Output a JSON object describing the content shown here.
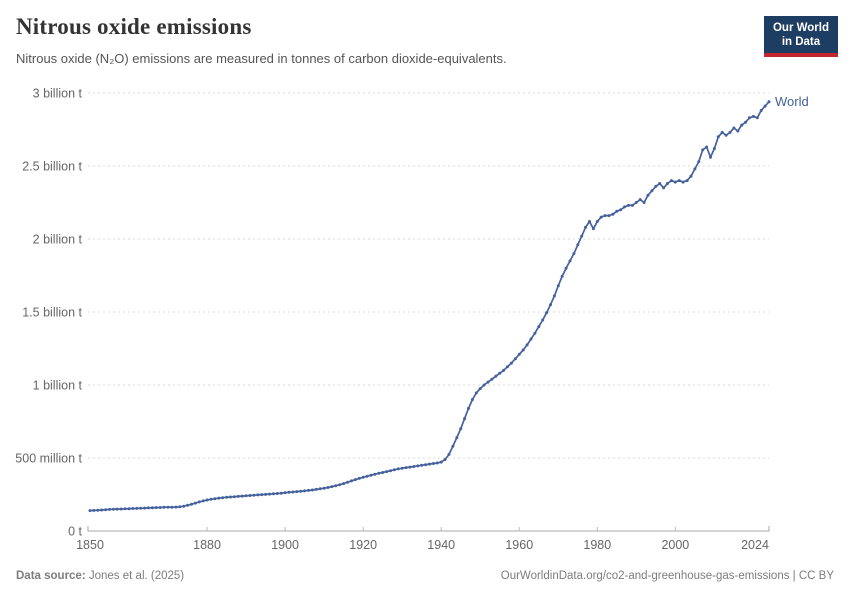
{
  "header": {
    "title": "Nitrous oxide emissions",
    "subtitle": "Nitrous oxide (N₂O) emissions are measured in tonnes of carbon dioxide-equivalents.",
    "logo": {
      "line1": "Our World",
      "line2": "in Data",
      "bg_color": "#1d3d63",
      "stripe_color": "#c2262e"
    }
  },
  "footer": {
    "source_label": "Data source:",
    "source_value": "Jones et al. (2025)",
    "credit": "OurWorldinData.org/co2-and-greenhouse-gas-emissions | CC BY"
  },
  "colors": {
    "line": "#45619c",
    "axis_text": "#666666",
    "grid": "#d9d9d9",
    "axis": "#a9a9a9",
    "title": "#333333",
    "subtitle": "#555555",
    "footer": "#7d7d7d"
  },
  "chart_data": {
    "type": "line",
    "title": "Nitrous oxide emissions",
    "xlabel": "",
    "ylabel": "",
    "unit": "tonnes of carbon dioxide-equivalents",
    "xlim": [
      1850,
      2024
    ],
    "ylim": [
      0,
      3
    ],
    "grid": "horizontal-dashed",
    "legend_position": "end-of-line",
    "x_ticks": [
      1850,
      1880,
      1900,
      1920,
      1940,
      1960,
      1980,
      2000,
      2024
    ],
    "y_ticks": [
      {
        "value": 0,
        "label": "0 t"
      },
      {
        "value": 0.5,
        "label": "500 million t"
      },
      {
        "value": 1,
        "label": "1 billion t"
      },
      {
        "value": 1.5,
        "label": "1.5 billion t"
      },
      {
        "value": 2,
        "label": "2 billion t"
      },
      {
        "value": 2.5,
        "label": "2.5 billion t"
      },
      {
        "value": 3,
        "label": "3 billion t"
      }
    ],
    "years": {
      "start": 1850,
      "end": 2024,
      "step": 1
    },
    "value_unit": "billion tonnes CO₂e",
    "series": [
      {
        "name": "World",
        "color": "#45619c",
        "values": [
          0.14,
          0.141,
          0.142,
          0.144,
          0.146,
          0.148,
          0.149,
          0.15,
          0.151,
          0.152,
          0.153,
          0.154,
          0.155,
          0.156,
          0.157,
          0.158,
          0.159,
          0.16,
          0.161,
          0.162,
          0.163,
          0.163,
          0.164,
          0.166,
          0.17,
          0.176,
          0.183,
          0.191,
          0.199,
          0.206,
          0.212,
          0.217,
          0.221,
          0.225,
          0.228,
          0.231,
          0.233,
          0.235,
          0.237,
          0.239,
          0.241,
          0.243,
          0.245,
          0.247,
          0.249,
          0.251,
          0.253,
          0.255,
          0.257,
          0.259,
          0.262,
          0.265,
          0.267,
          0.27,
          0.272,
          0.275,
          0.278,
          0.281,
          0.285,
          0.289,
          0.293,
          0.298,
          0.304,
          0.31,
          0.317,
          0.325,
          0.334,
          0.343,
          0.352,
          0.36,
          0.368,
          0.375,
          0.382,
          0.389,
          0.395,
          0.401,
          0.407,
          0.413,
          0.419,
          0.425,
          0.43,
          0.434,
          0.438,
          0.442,
          0.446,
          0.45,
          0.454,
          0.458,
          0.462,
          0.466,
          0.472,
          0.49,
          0.525,
          0.58,
          0.64,
          0.7,
          0.77,
          0.84,
          0.9,
          0.945,
          0.975,
          1.0,
          1.02,
          1.04,
          1.06,
          1.08,
          1.1,
          1.125,
          1.15,
          1.18,
          1.21,
          1.24,
          1.275,
          1.315,
          1.355,
          1.4,
          1.445,
          1.495,
          1.55,
          1.61,
          1.68,
          1.745,
          1.8,
          1.85,
          1.9,
          1.96,
          2.02,
          2.08,
          2.12,
          2.07,
          2.12,
          2.15,
          2.16,
          2.16,
          2.17,
          2.19,
          2.2,
          2.22,
          2.23,
          2.23,
          2.25,
          2.27,
          2.25,
          2.3,
          2.33,
          2.36,
          2.38,
          2.35,
          2.38,
          2.4,
          2.39,
          2.4,
          2.39,
          2.4,
          2.43,
          2.48,
          2.53,
          2.61,
          2.63,
          2.56,
          2.62,
          2.7,
          2.73,
          2.71,
          2.73,
          2.76,
          2.74,
          2.78,
          2.8,
          2.83,
          2.84,
          2.83,
          2.88,
          2.91,
          2.94
        ]
      }
    ]
  }
}
